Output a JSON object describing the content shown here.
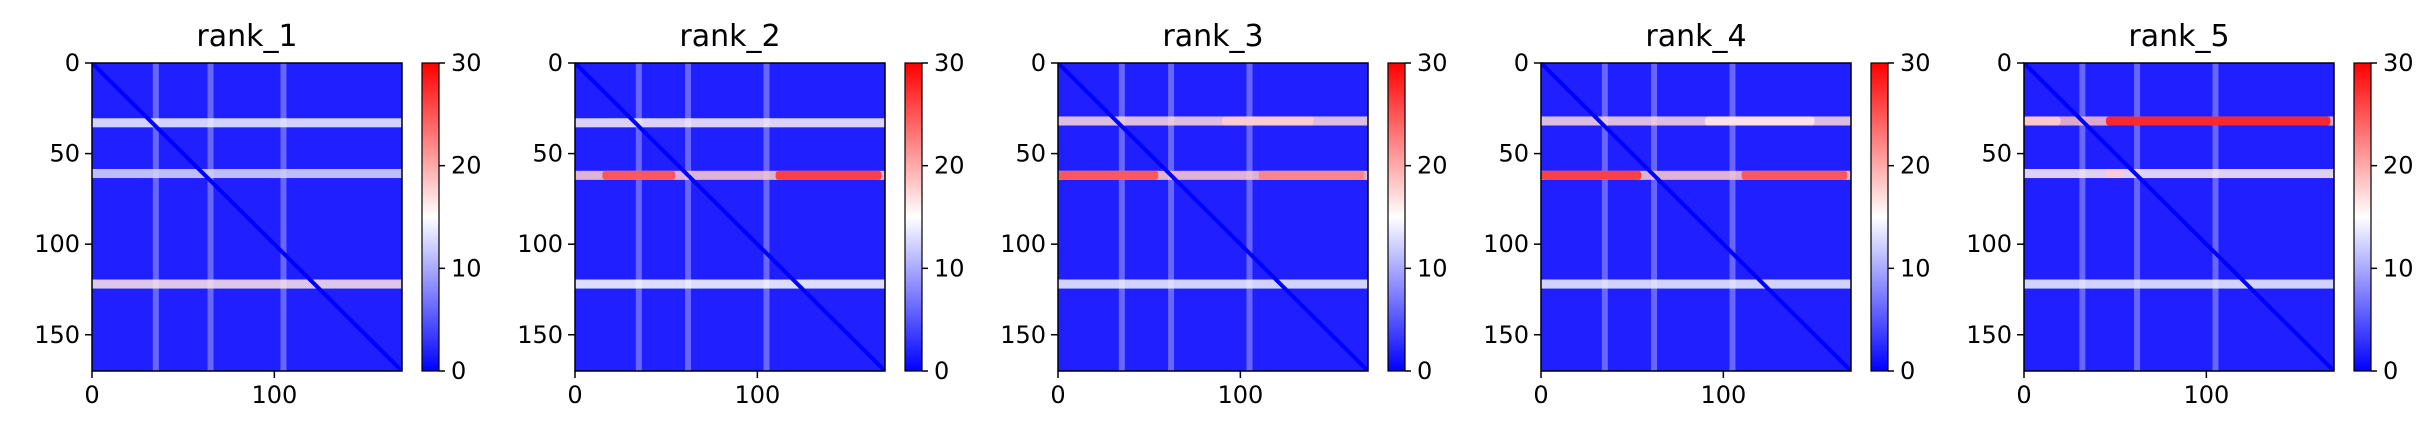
{
  "chart_data": [
    {
      "type": "heatmap",
      "title": "rank_1",
      "x_ticks": [
        0,
        100
      ],
      "y_ticks": [
        0,
        50,
        100,
        150
      ],
      "xlim": [
        0,
        170
      ],
      "ylim": [
        170,
        0
      ],
      "colorbar": {
        "min": 0,
        "max": 30,
        "ticks": [
          0,
          10,
          20,
          30
        ]
      },
      "colormap": [
        "#0000ff",
        "#ffffff",
        "#ff0000"
      ],
      "bands": [
        {
          "y_center": 33,
          "intensity": 0.55,
          "contact_segments": []
        },
        {
          "y_center": 61,
          "intensity": 0.45,
          "contact_segments": []
        },
        {
          "y_center": 122,
          "intensity": 0.7,
          "contact_segments": []
        }
      ],
      "columns": [
        35,
        65,
        105
      ]
    },
    {
      "type": "heatmap",
      "title": "rank_2",
      "x_ticks": [
        0,
        100
      ],
      "y_ticks": [
        0,
        50,
        100,
        150
      ],
      "xlim": [
        0,
        170
      ],
      "ylim": [
        170,
        0
      ],
      "colorbar": {
        "min": 0,
        "max": 30,
        "ticks": [
          0,
          10,
          20,
          30
        ]
      },
      "colormap": [
        "#0000ff",
        "#ffffff",
        "#ff0000"
      ],
      "bands": [
        {
          "y_center": 33,
          "intensity": 0.65,
          "contact_segments": []
        },
        {
          "y_center": 62,
          "intensity": 0.8,
          "contact_segments": [
            [
              15,
              55,
              0.85
            ],
            [
              110,
              168,
              0.9
            ]
          ]
        },
        {
          "y_center": 122,
          "intensity": 0.6,
          "contact_segments": []
        }
      ],
      "columns": [
        35,
        62,
        105
      ]
    },
    {
      "type": "heatmap",
      "title": "rank_3",
      "x_ticks": [
        0,
        100
      ],
      "y_ticks": [
        0,
        50,
        100,
        150
      ],
      "xlim": [
        0,
        170
      ],
      "ylim": [
        170,
        0
      ],
      "colorbar": {
        "min": 0,
        "max": 30,
        "ticks": [
          0,
          10,
          20,
          30
        ]
      },
      "colormap": [
        "#0000ff",
        "#ffffff",
        "#ff0000"
      ],
      "bands": [
        {
          "y_center": 32,
          "intensity": 0.75,
          "contact_segments": [
            [
              90,
              140,
              0.6
            ]
          ]
        },
        {
          "y_center": 62,
          "intensity": 0.8,
          "contact_segments": [
            [
              0,
              55,
              0.85
            ],
            [
              110,
              168,
              0.75
            ]
          ]
        },
        {
          "y_center": 122,
          "intensity": 0.55,
          "contact_segments": []
        }
      ],
      "columns": [
        35,
        62,
        105
      ]
    },
    {
      "type": "heatmap",
      "title": "rank_4",
      "x_ticks": [
        0,
        100
      ],
      "y_ticks": [
        0,
        50,
        100,
        150
      ],
      "xlim": [
        0,
        170
      ],
      "ylim": [
        170,
        0
      ],
      "colorbar": {
        "min": 0,
        "max": 30,
        "ticks": [
          0,
          10,
          20,
          30
        ]
      },
      "colormap": [
        "#0000ff",
        "#ffffff",
        "#ff0000"
      ],
      "bands": [
        {
          "y_center": 32,
          "intensity": 0.75,
          "contact_segments": [
            [
              90,
              150,
              0.55
            ]
          ]
        },
        {
          "y_center": 62,
          "intensity": 0.8,
          "contact_segments": [
            [
              0,
              55,
              0.9
            ],
            [
              110,
              168,
              0.85
            ]
          ]
        },
        {
          "y_center": 122,
          "intensity": 0.55,
          "contact_segments": []
        }
      ],
      "columns": [
        35,
        62,
        105
      ]
    },
    {
      "type": "heatmap",
      "title": "rank_5",
      "x_ticks": [
        0,
        100
      ],
      "y_ticks": [
        0,
        50,
        100,
        150
      ],
      "xlim": [
        0,
        170
      ],
      "ylim": [
        170,
        0
      ],
      "colorbar": {
        "min": 0,
        "max": 30,
        "ticks": [
          0,
          10,
          20,
          30
        ]
      },
      "colormap": [
        "#0000ff",
        "#ffffff",
        "#ff0000"
      ],
      "bands": [
        {
          "y_center": 32,
          "intensity": 0.85,
          "contact_segments": [
            [
              0,
              20,
              0.6
            ],
            [
              45,
              168,
              0.95
            ]
          ]
        },
        {
          "y_center": 61,
          "intensity": 0.65,
          "contact_segments": [
            [
              45,
              55,
              0.6
            ]
          ]
        },
        {
          "y_center": 122,
          "intensity": 0.55,
          "contact_segments": []
        }
      ],
      "columns": [
        32,
        62,
        105
      ]
    }
  ]
}
